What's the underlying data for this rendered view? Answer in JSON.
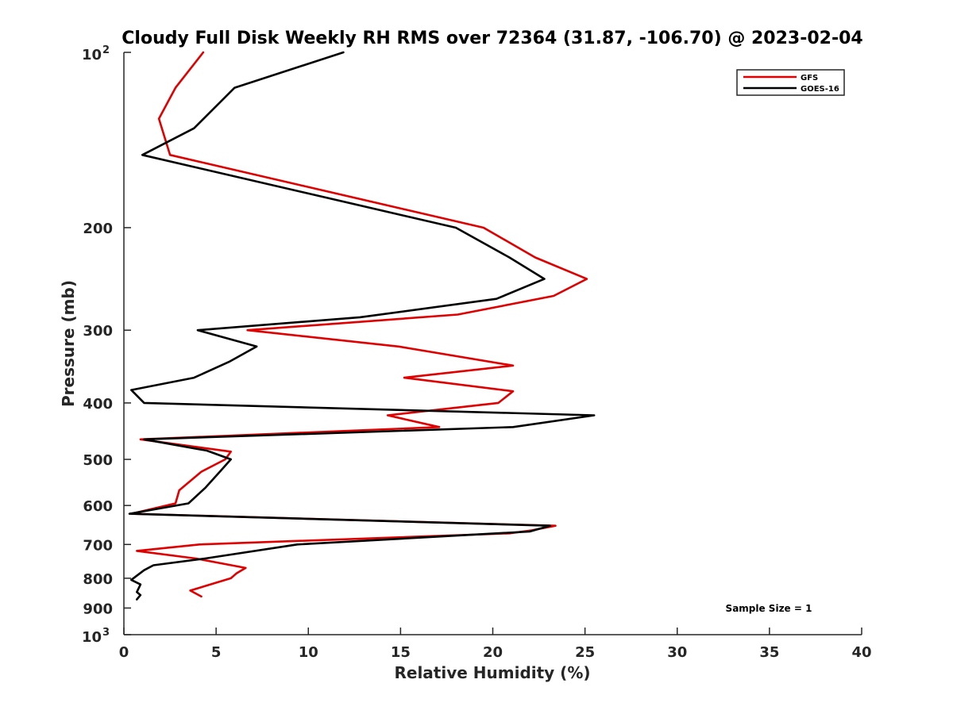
{
  "chart_data": {
    "type": "line",
    "title": "Cloudy Full Disk Weekly RH RMS over 72364 (31.87, -106.70) @ 2023-02-04",
    "xlabel": "Relative Humidity (%)",
    "ylabel": "Pressure (mb)",
    "xlim": [
      0,
      40
    ],
    "ylim": [
      100,
      1000
    ],
    "yscale": "log",
    "y_reversed": true,
    "xticks": [
      0,
      5,
      10,
      15,
      20,
      25,
      30,
      35,
      40
    ],
    "yticks": [
      {
        "value": 100,
        "base": "10",
        "exp": "2"
      },
      {
        "value": 200,
        "label": "200"
      },
      {
        "value": 300,
        "label": "300"
      },
      {
        "value": 400,
        "label": "400"
      },
      {
        "value": 500,
        "label": "500"
      },
      {
        "value": 600,
        "label": "600"
      },
      {
        "value": 700,
        "label": "700"
      },
      {
        "value": 800,
        "label": "800"
      },
      {
        "value": 900,
        "label": "900"
      },
      {
        "value": 1000,
        "base": "10",
        "exp": "3"
      }
    ],
    "grid": false,
    "legend_position": "top-right",
    "annotation": "Sample Size = 1",
    "series": [
      {
        "name": "GFS",
        "color": "#e00000",
        "points": [
          [
            4.3,
            100
          ],
          [
            2.8,
            115
          ],
          [
            1.9,
            130
          ],
          [
            2.5,
            150
          ],
          [
            19.5,
            200
          ],
          [
            22.3,
            225
          ],
          [
            25.1,
            245
          ],
          [
            23.3,
            262
          ],
          [
            18.1,
            282
          ],
          [
            6.7,
            300
          ],
          [
            14.9,
            320
          ],
          [
            21.1,
            345
          ],
          [
            15.2,
            362
          ],
          [
            21.1,
            382
          ],
          [
            20.3,
            400
          ],
          [
            14.3,
            420
          ],
          [
            17.1,
            440
          ],
          [
            0.9,
            462
          ],
          [
            5.8,
            485
          ],
          [
            5.5,
            500
          ],
          [
            4.2,
            525
          ],
          [
            3.0,
            565
          ],
          [
            2.8,
            595
          ],
          [
            0.4,
            620
          ],
          [
            23.4,
            650
          ],
          [
            22.1,
            662
          ],
          [
            20.9,
            670
          ],
          [
            4.1,
            700
          ],
          [
            0.7,
            718
          ],
          [
            3.9,
            740
          ],
          [
            6.6,
            768
          ],
          [
            6.1,
            785
          ],
          [
            5.8,
            800
          ],
          [
            3.6,
            840
          ],
          [
            4.2,
            860
          ]
        ]
      },
      {
        "name": "GOES-16",
        "color": "#000000",
        "points": [
          [
            11.9,
            100
          ],
          [
            6.0,
            115
          ],
          [
            3.8,
            135
          ],
          [
            1.0,
            150
          ],
          [
            18.0,
            200
          ],
          [
            20.9,
            225
          ],
          [
            22.8,
            245
          ],
          [
            20.2,
            265
          ],
          [
            12.8,
            285
          ],
          [
            4.0,
            300
          ],
          [
            7.2,
            320
          ],
          [
            5.7,
            340
          ],
          [
            3.8,
            362
          ],
          [
            0.4,
            380
          ],
          [
            1.1,
            400
          ],
          [
            25.5,
            420
          ],
          [
            21.1,
            440
          ],
          [
            1.1,
            462
          ],
          [
            4.5,
            483
          ],
          [
            5.8,
            500
          ],
          [
            5.2,
            525
          ],
          [
            4.4,
            560
          ],
          [
            3.5,
            595
          ],
          [
            0.3,
            620
          ],
          [
            23.1,
            650
          ],
          [
            22.0,
            665
          ],
          [
            9.4,
            700
          ],
          [
            4.4,
            740
          ],
          [
            1.6,
            760
          ],
          [
            1.1,
            775
          ],
          [
            0.4,
            805
          ],
          [
            0.9,
            820
          ],
          [
            0.7,
            845
          ],
          [
            0.9,
            855
          ],
          [
            0.7,
            870
          ]
        ]
      }
    ]
  }
}
